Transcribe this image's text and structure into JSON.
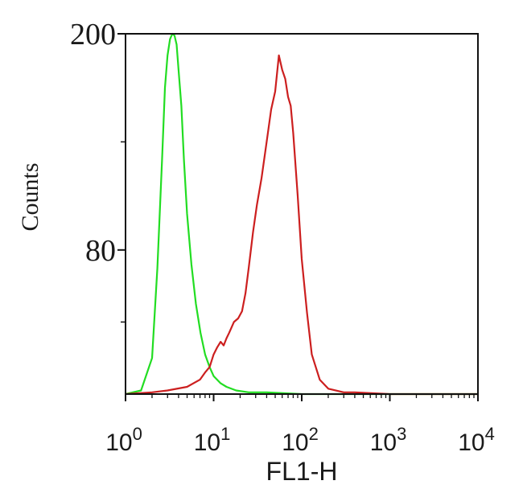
{
  "chart_data": {
    "type": "line",
    "title": "",
    "xlabel": "FL1-H",
    "ylabel": "Counts",
    "x_scale": "log",
    "xlim": [
      1,
      10000
    ],
    "ylim": [
      0,
      200
    ],
    "x_ticks": [
      {
        "base": "10",
        "exp": "0"
      },
      {
        "base": "10",
        "exp": "1"
      },
      {
        "base": "10",
        "exp": "2"
      },
      {
        "base": "10",
        "exp": "3"
      },
      {
        "base": "10",
        "exp": "4"
      }
    ],
    "y_ticks": [
      "80",
      "200"
    ],
    "y_tick_values": [
      80,
      200
    ],
    "grid": false,
    "legend": "none",
    "series": [
      {
        "color": "#22dd22",
        "x": [
          1.0,
          1.5,
          2.0,
          2.3,
          2.6,
          2.8,
          3.0,
          3.2,
          3.4,
          3.6,
          3.8,
          4.0,
          4.3,
          4.6,
          5.0,
          5.6,
          6.3,
          7.1,
          8.0,
          9.0,
          10.0,
          12.0,
          14.0,
          18.0,
          25.0,
          40.0,
          100.0,
          1000.0,
          10000.0
        ],
        "values": [
          0,
          2,
          20,
          70,
          130,
          170,
          188,
          197,
          200,
          199,
          194,
          180,
          160,
          130,
          100,
          72,
          50,
          34,
          22,
          15,
          10,
          6,
          4,
          2,
          1,
          1,
          0,
          0,
          0
        ]
      },
      {
        "color": "#cc1f1f",
        "x": [
          1.0,
          2.0,
          3.0,
          5.0,
          7.0,
          8.0,
          9.0,
          10.0,
          11.0,
          12.0,
          13.0,
          14.0,
          15.0,
          17.0,
          19.0,
          21.0,
          23.0,
          25.0,
          28.0,
          31.0,
          35.0,
          40.0,
          45.0,
          50.0,
          55.0,
          60.0,
          65.0,
          70.0,
          75.0,
          80.0,
          90.0,
          100.0,
          115.0,
          130.0,
          160.0,
          200.0,
          300.0,
          400.0,
          1000.0,
          10000.0
        ],
        "values": [
          0,
          1,
          2,
          4,
          8,
          12,
          15,
          22,
          26,
          29,
          27,
          31,
          34,
          40,
          42,
          46,
          56,
          70,
          90,
          105,
          120,
          140,
          158,
          168,
          188,
          180,
          175,
          165,
          160,
          145,
          110,
          75,
          45,
          22,
          8,
          3,
          1,
          1,
          0,
          0
        ]
      }
    ]
  }
}
